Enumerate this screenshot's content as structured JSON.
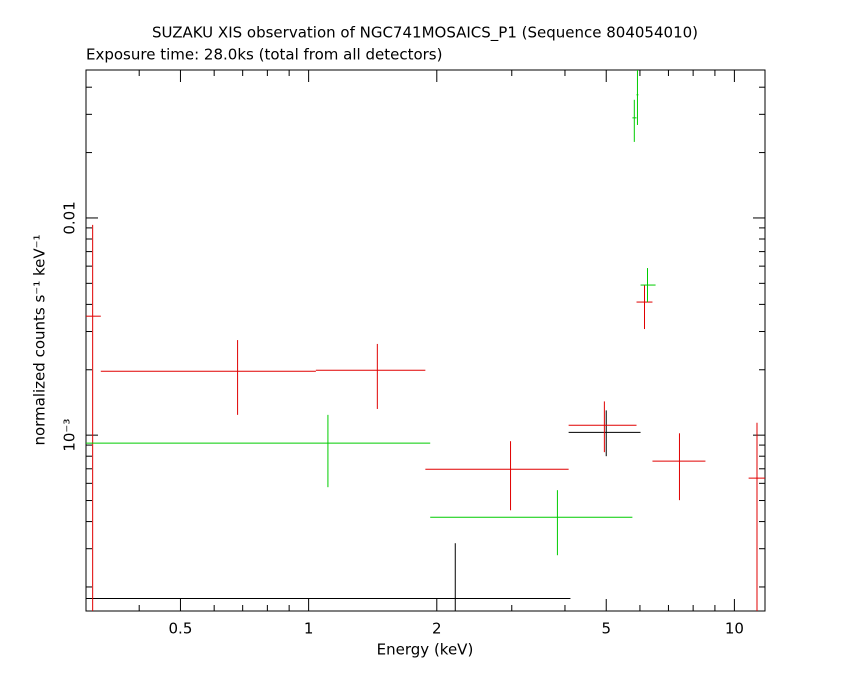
{
  "chart_data": {
    "type": "scatter",
    "title": "SUZAKU XIS observation of NGC741MOSAICS_P1 (Sequence 804054010)",
    "subtitle": "Exposure time: 28.0ks (total from all detectors)",
    "x_label": "Energy (keV)",
    "y_label": "normalized counts s⁻¹ keV⁻¹",
    "x_log": true,
    "y_log": true,
    "xlim": [
      0.3,
      11.8
    ],
    "ylim": [
      0.000155,
      0.048
    ],
    "xticks": [
      0.5,
      1,
      2,
      5,
      10
    ],
    "xminor_ticks": [
      0.3,
      0.4,
      0.6,
      0.7,
      0.8,
      0.9,
      3,
      4,
      6,
      7,
      8,
      9
    ],
    "yticks": [
      {
        "value": 0.001,
        "label": "10⁻³"
      },
      0.01
    ],
    "yminor_ticks": [
      0.0002,
      0.0003,
      0.0004,
      0.0005,
      0.0006,
      0.0007,
      0.0008,
      0.0009,
      0.002,
      0.003,
      0.004,
      0.005,
      0.006,
      0.007,
      0.008,
      0.009,
      0.02,
      0.03,
      0.04
    ],
    "series": [
      {
        "color": "#000000",
        "x": [
          2.21,
          5.0
        ],
        "x_low": [
          0.3,
          4.08
        ],
        "x_high": [
          4.12,
          6.02
        ],
        "values": [
          0.000177,
          0.00103
        ],
        "y_low": [
          0.000155,
          0.0008
        ],
        "y_high": [
          0.000318,
          0.0013
        ]
      },
      {
        "color": "#e00000",
        "x": [
          0.311,
          0.681,
          1.45,
          2.98,
          4.95,
          6.15,
          7.43,
          11.3
        ],
        "x_low": [
          0.3,
          0.325,
          1.04,
          1.88,
          4.08,
          5.89,
          6.42,
          10.8
        ],
        "x_high": [
          0.325,
          1.04,
          1.88,
          4.08,
          5.89,
          6.42,
          8.55,
          11.8
        ],
        "values": [
          0.00353,
          0.00197,
          0.00199,
          0.000697,
          0.00111,
          0.0041,
          0.000759,
          0.000634
        ],
        "y_low": [
          0.000155,
          0.00124,
          0.00132,
          0.000451,
          0.000835,
          0.00308,
          0.000502,
          0.000155
        ],
        "y_high": [
          0.00929,
          0.00274,
          0.00263,
          0.000938,
          0.00143,
          0.00491,
          0.00102,
          0.00114
        ]
      },
      {
        "color": "#00cc00",
        "x": [
          1.11,
          3.84,
          5.82,
          5.92,
          6.25
        ],
        "x_low": [
          0.3,
          1.93,
          5.76,
          5.89,
          6.02
        ],
        "x_high": [
          1.93,
          5.76,
          5.89,
          5.95,
          6.53
        ],
        "values": [
          0.000919,
          0.000419,
          0.0289,
          0.0369,
          0.00491
        ],
        "y_low": [
          0.000576,
          0.00028,
          0.0224,
          0.0268,
          0.0041
        ],
        "y_high": [
          0.00124,
          0.000558,
          0.035,
          0.048,
          0.00588
        ]
      }
    ]
  }
}
